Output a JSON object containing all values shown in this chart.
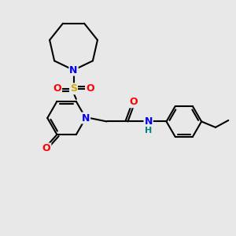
{
  "bg_color": "#e8e8e8",
  "atom_colors": {
    "C": "#000000",
    "N": "#0000ff",
    "O": "#ff0000",
    "S": "#ccaa00",
    "H": "#008080"
  },
  "bond_color": "#000000",
  "bond_width": 1.5,
  "figsize": [
    3.0,
    3.0
  ],
  "dpi": 100
}
